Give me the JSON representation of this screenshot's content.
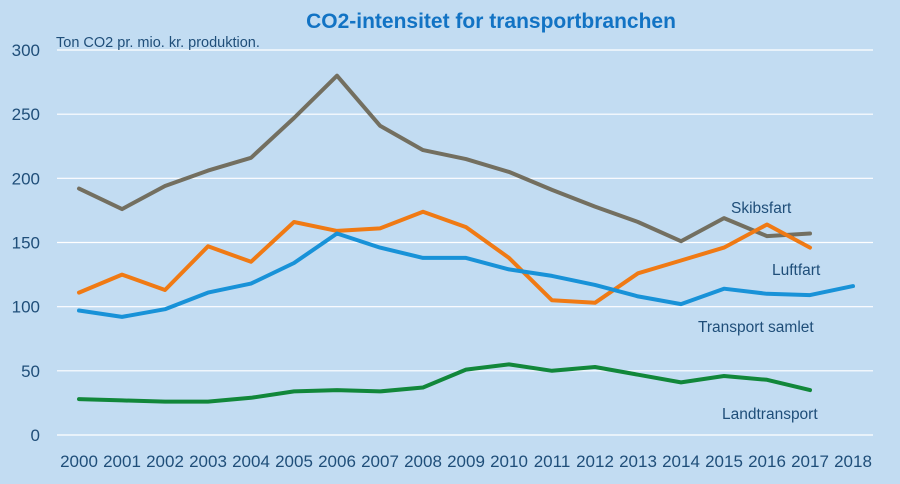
{
  "chart_data": {
    "type": "line",
    "title": "CO2-intensitet for transportbranchen",
    "ylabel": "Ton CO2 pr. mio. kr. produktion.",
    "xlabel": "",
    "ylim": [
      0,
      300
    ],
    "yticks": [
      0,
      50,
      100,
      150,
      200,
      250,
      300
    ],
    "grid": true,
    "legend": "inline-labels",
    "x": [
      "2000",
      "2001",
      "2002",
      "2003",
      "2004",
      "2005",
      "2006",
      "2007",
      "2008",
      "2009",
      "2010",
      "2011",
      "2012",
      "2013",
      "2014",
      "2015",
      "2016",
      "2017",
      "2018"
    ],
    "series": [
      {
        "name": "Skibsfart",
        "color": "#736f60",
        "values": [
          192,
          176,
          194,
          206,
          216,
          247,
          280,
          241,
          222,
          215,
          205,
          191,
          178,
          166,
          151,
          169,
          155,
          157,
          null
        ]
      },
      {
        "name": "Luftfart",
        "color": "#f07a14",
        "values": [
          111,
          125,
          113,
          147,
          135,
          166,
          159,
          161,
          174,
          162,
          138,
          105,
          103,
          126,
          136,
          146,
          164,
          146,
          null
        ]
      },
      {
        "name": "Transport samlet",
        "color": "#1892d8",
        "values": [
          97,
          92,
          98,
          111,
          118,
          134,
          157,
          146,
          138,
          138,
          129,
          124,
          117,
          108,
          102,
          114,
          110,
          109,
          116
        ]
      },
      {
        "name": "Landtransport",
        "color": "#11873a",
        "values": [
          28,
          27,
          26,
          26,
          29,
          34,
          35,
          34,
          37,
          51,
          55,
          50,
          53,
          47,
          41,
          46,
          43,
          35,
          null
        ]
      }
    ]
  }
}
